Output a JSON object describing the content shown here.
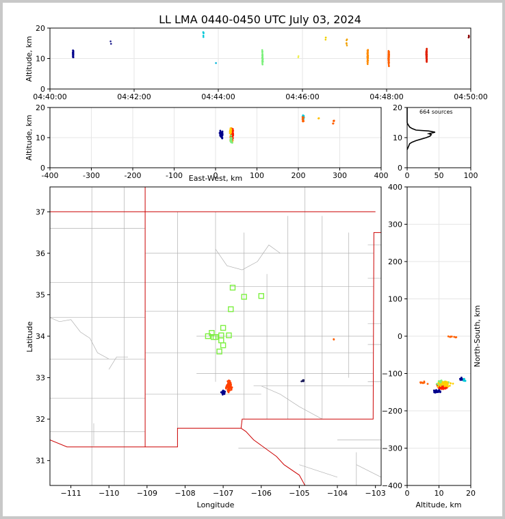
{
  "title": "LL LMA 0440-0450 UTC July 03, 2024",
  "colors": {
    "border_state": "#cc0000",
    "border_county": "#b0b0b0",
    "grid": "#e6e6e6"
  },
  "chart_data": [
    {
      "type": "scatter",
      "name": "time-height",
      "xlabel": "",
      "ylabel": "Altitude, km",
      "ylim": [
        0,
        20
      ],
      "xticks": [
        "04:40:00",
        "04:42:00",
        "04:44:00",
        "04:46:00",
        "04:48:00",
        "04:50:00"
      ],
      "xlim_minutes": [
        0,
        10
      ],
      "yticks": [
        0,
        10,
        20
      ],
      "clusters": [
        {
          "t": 0.55,
          "alt": 11.5,
          "spread": 1.6,
          "n": 60,
          "color": "#00008b"
        },
        {
          "t": 1.45,
          "alt": 16,
          "spread": 2.0,
          "n": 2,
          "color": "#1a1a8c"
        },
        {
          "t": 3.65,
          "alt": 18,
          "spread": 1.5,
          "n": 6,
          "color": "#00c8d8"
        },
        {
          "t": 3.95,
          "alt": 8.5,
          "spread": 0.3,
          "n": 1,
          "color": "#00b4d8"
        },
        {
          "t": 5.05,
          "alt": 10,
          "spread": 3.5,
          "n": 40,
          "color": "#7cf07c"
        },
        {
          "t": 5.9,
          "alt": 10.5,
          "spread": 0.6,
          "n": 2,
          "color": "#f0f050"
        },
        {
          "t": 6.55,
          "alt": 17,
          "spread": 1.0,
          "n": 3,
          "color": "#f0d000"
        },
        {
          "t": 7.05,
          "alt": 15.5,
          "spread": 1.8,
          "n": 6,
          "color": "#f0a000"
        },
        {
          "t": 7.55,
          "alt": 11,
          "spread": 3.0,
          "n": 60,
          "color": "#ff8c00"
        },
        {
          "t": 8.05,
          "alt": 10.5,
          "spread": 3.5,
          "n": 90,
          "color": "#ff6000"
        },
        {
          "t": 8.95,
          "alt": 11,
          "spread": 3.0,
          "n": 70,
          "color": "#e02000"
        },
        {
          "t": 9.95,
          "alt": 17,
          "spread": 1.0,
          "n": 4,
          "color": "#8b0000"
        }
      ]
    },
    {
      "type": "scatter",
      "name": "east-west-altitude",
      "xlabel": "East-West, km",
      "ylabel": "Altitude, km",
      "xlim": [
        -400,
        400
      ],
      "ylim": [
        0,
        20
      ],
      "xticks": [
        -400,
        -300,
        -200,
        -100,
        0,
        100,
        200,
        300,
        400
      ],
      "yticks": [
        0,
        10,
        20
      ]
    },
    {
      "type": "histogram",
      "name": "altitude-histogram",
      "annotation": "664 sources",
      "xlim": [
        0,
        100
      ],
      "ylim": [
        0,
        20
      ],
      "xticks": [
        0,
        50,
        100
      ],
      "yticks": [
        0,
        10,
        20
      ],
      "profile": [
        [
          0,
          6
        ],
        [
          2,
          7
        ],
        [
          4,
          8
        ],
        [
          8,
          8.5
        ],
        [
          14,
          9
        ],
        [
          22,
          9.5
        ],
        [
          30,
          10
        ],
        [
          36,
          10.5
        ],
        [
          38,
          11
        ],
        [
          34,
          11.3
        ],
        [
          44,
          11.8
        ],
        [
          34,
          12.2
        ],
        [
          14,
          12.5
        ],
        [
          8,
          13
        ],
        [
          4,
          13.5
        ],
        [
          1,
          14.5
        ],
        [
          0,
          15
        ],
        [
          0,
          17
        ],
        [
          0,
          20
        ]
      ]
    },
    {
      "type": "scatter",
      "name": "plan-view",
      "xlabel": "Longitude",
      "ylabel": "Latitude",
      "xlim": [
        -111.55,
        -102.85
      ],
      "ylim": [
        30.4,
        37.6
      ],
      "xticks": [
        -111,
        -110,
        -109,
        -108,
        -107,
        -106,
        -105,
        -104,
        -103
      ],
      "yticks": [
        31,
        32,
        33,
        34,
        35,
        36,
        37
      ],
      "green_squares": [
        [
          -106.75,
          35.17
        ],
        [
          -106.45,
          34.95
        ],
        [
          -106.0,
          34.97
        ],
        [
          -106.8,
          34.65
        ],
        [
          -107.0,
          34.2
        ],
        [
          -107.3,
          34.08
        ],
        [
          -107.4,
          34.0
        ],
        [
          -107.25,
          33.98
        ],
        [
          -107.05,
          34.02
        ],
        [
          -106.85,
          34.02
        ],
        [
          -107.05,
          33.9
        ],
        [
          -107.0,
          33.78
        ],
        [
          -107.1,
          33.63
        ],
        [
          -107.2,
          33.98
        ]
      ],
      "clusters": [
        {
          "lon": -106.85,
          "lat": 32.8,
          "sx": 0.1,
          "sy": 0.18,
          "n": 70,
          "color": "#ff4000"
        },
        {
          "lon": -107.0,
          "lat": 32.65,
          "sx": 0.08,
          "sy": 0.07,
          "n": 30,
          "color": "#00008b"
        },
        {
          "lon": -104.9,
          "lat": 32.92,
          "sx": 0.05,
          "sy": 0.04,
          "n": 8,
          "color": "#202060"
        },
        {
          "lon": -104.1,
          "lat": 33.92,
          "sx": 0.02,
          "sy": 0.02,
          "n": 2,
          "color": "#ff6000"
        }
      ]
    },
    {
      "type": "scatter",
      "name": "altitude-north-south",
      "xlabel": "Altitude, km",
      "ylabel": "North-South, km",
      "xlim": [
        0,
        20
      ],
      "ylim": [
        -400,
        400
      ],
      "xticks": [
        0,
        10,
        20
      ],
      "yticks": [
        -400,
        -300,
        -200,
        -100,
        0,
        100,
        200,
        300,
        400
      ]
    }
  ]
}
